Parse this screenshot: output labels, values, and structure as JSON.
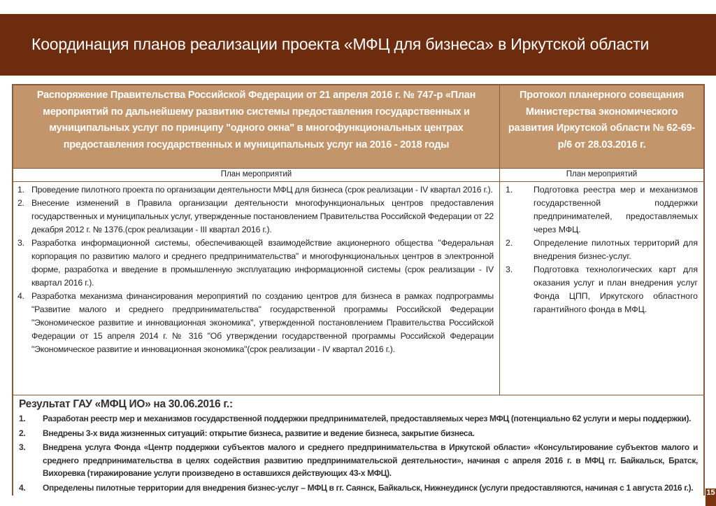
{
  "slide": {
    "title": "Координация планов реализации проекта «МФЦ для бизнеса» в Иркутской области",
    "page_number": "15",
    "colors": {
      "title_bar": "#6e2c0f",
      "header_fill": "#c3956b",
      "border": "#8a5a3c"
    }
  },
  "table": {
    "left_header": "Распоряжение Правительства Российской Федерации от 21 апреля 2016 г.  № 747-р «План мероприятий по дальнейшему развитию системы предоставления государственных и муниципальных услуг по принципу \"одного окна\" в многофункциональных центрах предоставления государственных и муниципальных услуг на 2016 - 2018 годы",
    "right_header": "Протокол планерного совещания Министерства экономического развития Иркутской области № 62-69-р/6 от 28.03.2016 г.",
    "left_subheader": "План мероприятий",
    "right_subheader": "План мероприятий",
    "left_items": [
      {
        "num": "1.",
        "text": "Проведение пилотного проекта по организации деятельности МФЦ для бизнеса (срок реализации - IV квартал 2016 г.)."
      },
      {
        "num": "2.",
        "text": "Внесение изменений в Правила организации деятельности многофункциональных центров предоставления государственных и муниципальных услуг, утвержденные постановлением Правительства Российской Федерации от 22 декабря 2012 г. № 1376.(срок реализации - III квартал 2016 г.)."
      },
      {
        "num": "3.",
        "text": "Разработка информационной системы, обеспечивающей взаимодействие акционерного общества \"Федеральная корпорация по развитию малого и среднего предпринимательства\" и многофункциональных центров в электронной форме, разработка и введение в промышленную эксплуатацию информационной системы (срок реализации - IV квартал 2016 г.)."
      },
      {
        "num": "4.",
        "text": "Разработка механизма финансирования мероприятий по созданию центров для бизнеса в рамках подпрограммы \"Развитие малого и среднего предпринимательства\" государственной программы Российской Федерации \"Экономическое развитие и инновационная экономика\", утвержденной постановлением Правительства Российской Федерации от 15 апреля 2014 г. № 316 \"Об утверждении государственной программы Российской Федерации \"Экономическое развитие и инновационная экономика\"(срок реализации - IV квартал 2016 г.)."
      }
    ],
    "right_items": [
      {
        "num": "1.",
        "text": "Подготовка реестра мер и механизмов государственной поддержки предпринимателей, предоставляемых через МФЦ."
      },
      {
        "num": "2.",
        "text": "Определение пилотных территорий для внедрения бизнес-услуг."
      },
      {
        "num": "3.",
        "text": "Подготовка технологических карт для оказания услуг и план внедрения услуг Фонда ЦПП, Иркутского областного гарантийного фонда в МФЦ."
      }
    ],
    "result_title": "Результат ГАУ «МФЦ ИО» на 30.06.2016 г.:",
    "result_items": [
      {
        "num": "1.",
        "text": "Разработан реестр мер и механизмов государственной поддержки предпринимателей, предоставляемых через МФЦ (потенциально 62 услуги  и меры поддержки)."
      },
      {
        "num": "2.",
        "text": "Внедрены 3-х вида жизненных ситуаций: открытие бизнеса, развитие и ведение бизнеса, закрытие бизнеса."
      },
      {
        "num": "3.",
        "text": "Внедрена услуга Фонда «Центр поддержки субъектов малого и среднего предпринимательства в Иркутской области» «Консультирование субъектов малого и среднего предпринимательства в целях содействия развитию предпринимательской деятельности», начиная с апреля 2016 г. в МФЦ гг. Байкальск, Братск, Вихоревка (тиражирование услуги произведено в оставшихся действующих 43-х МФЦ)."
      },
      {
        "num": "4.",
        "text": "Определены пилотные территории для внедрения бизнес-услуг – МФЦ в гг. Саянск, Байкальск, Нижнеудинск (услуги предоставляются, начиная с 1 августа 2016 г.)."
      }
    ]
  }
}
